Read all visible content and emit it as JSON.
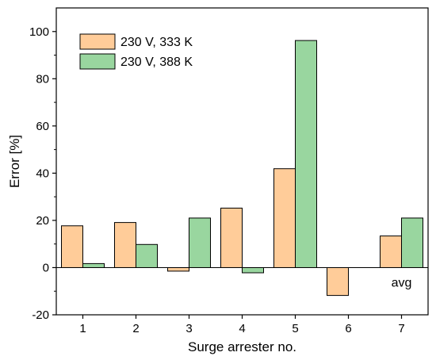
{
  "chart_data": {
    "type": "bar",
    "categories": [
      "1",
      "2",
      "3",
      "4",
      "5",
      "6",
      "7"
    ],
    "series": [
      {
        "name": "230 V, 333 K",
        "color": "#FFCC99",
        "values": [
          17.7,
          19.1,
          -1.5,
          25.2,
          41.9,
          -11.8,
          13.4
        ]
      },
      {
        "name": "230 V, 388 K",
        "color": "#99D69F",
        "values": [
          1.7,
          9.8,
          21.0,
          -2.2,
          96.2,
          0.0,
          21.0
        ]
      }
    ],
    "xlabel": "Surge arrester no.",
    "ylabel": "Error [%]",
    "ylim": [
      -20,
      110
    ],
    "yticks": [
      -20,
      0,
      20,
      40,
      60,
      80,
      100
    ],
    "legend_position": "top-left",
    "grid": false,
    "annotation": "avg",
    "edge_color": "#000000"
  }
}
